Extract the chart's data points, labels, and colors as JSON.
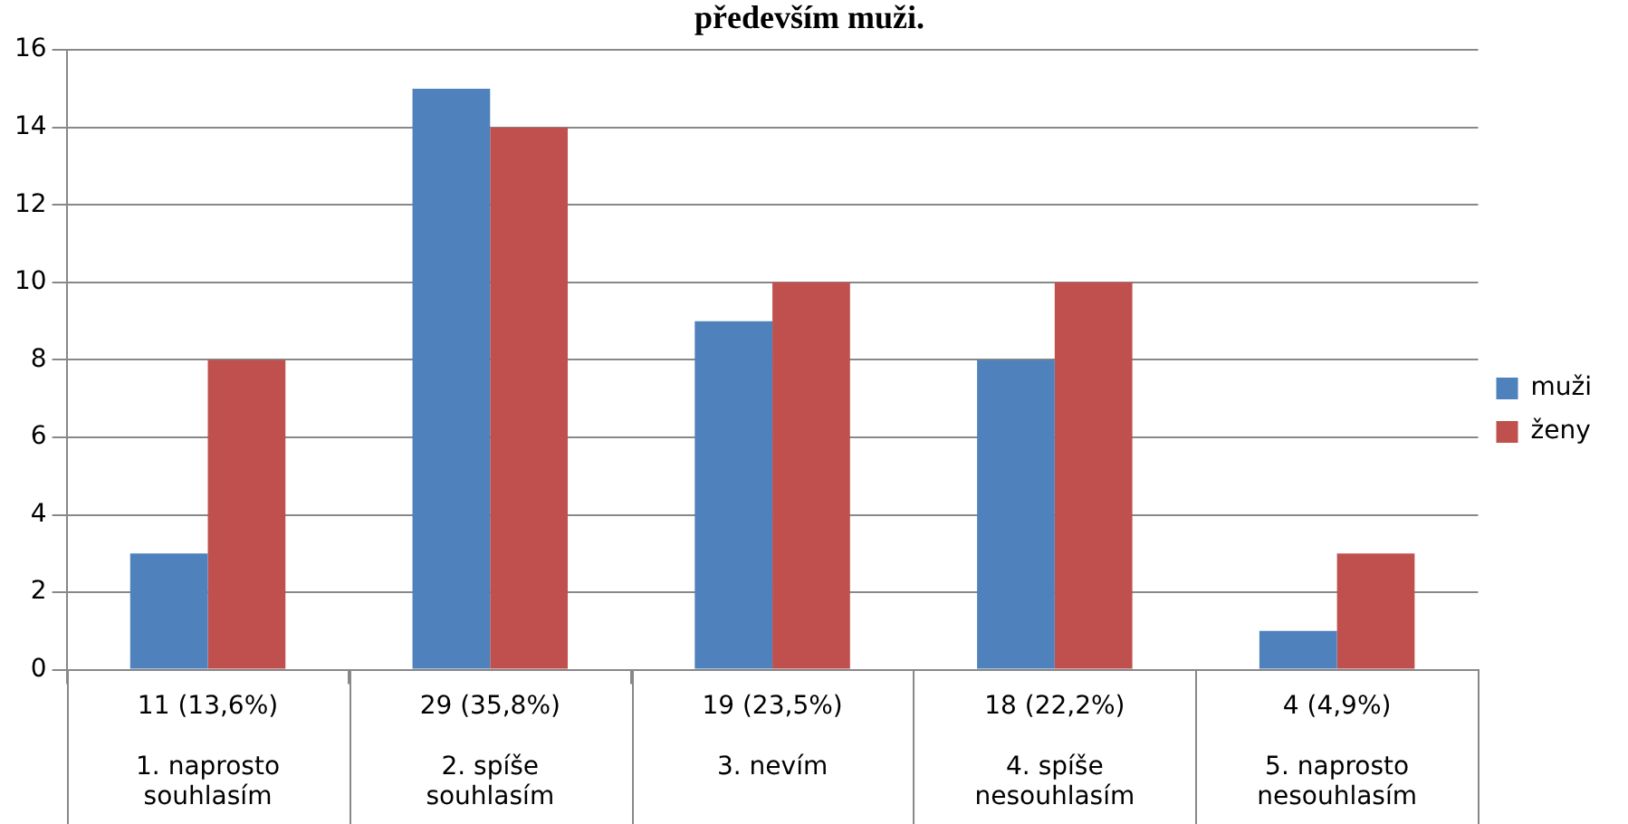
{
  "chart_data": {
    "type": "bar",
    "title": "především muži.",
    "categories": [
      "1. naprosto souhlasím",
      "2. spíše souhlasím",
      "3. nevím",
      "4. spíše nesouhlasím",
      "5. naprosto nesouhlasím"
    ],
    "series": [
      {
        "name": "muži",
        "color": "#4f81bd",
        "values": [
          3,
          15,
          9,
          8,
          1
        ]
      },
      {
        "name": "ženy",
        "color": "#c0504d",
        "values": [
          8,
          14,
          10,
          10,
          3
        ]
      }
    ],
    "totals": [
      "11 (13,6%)",
      "29 (35,8%)",
      "19 (23,5%)",
      "18 (22,2%)",
      "4 (4,9%)"
    ],
    "ylim": [
      0,
      16
    ],
    "yticks": [
      0,
      2,
      4,
      6,
      8,
      10,
      12,
      14,
      16
    ],
    "grid": "y",
    "legend": "right"
  }
}
